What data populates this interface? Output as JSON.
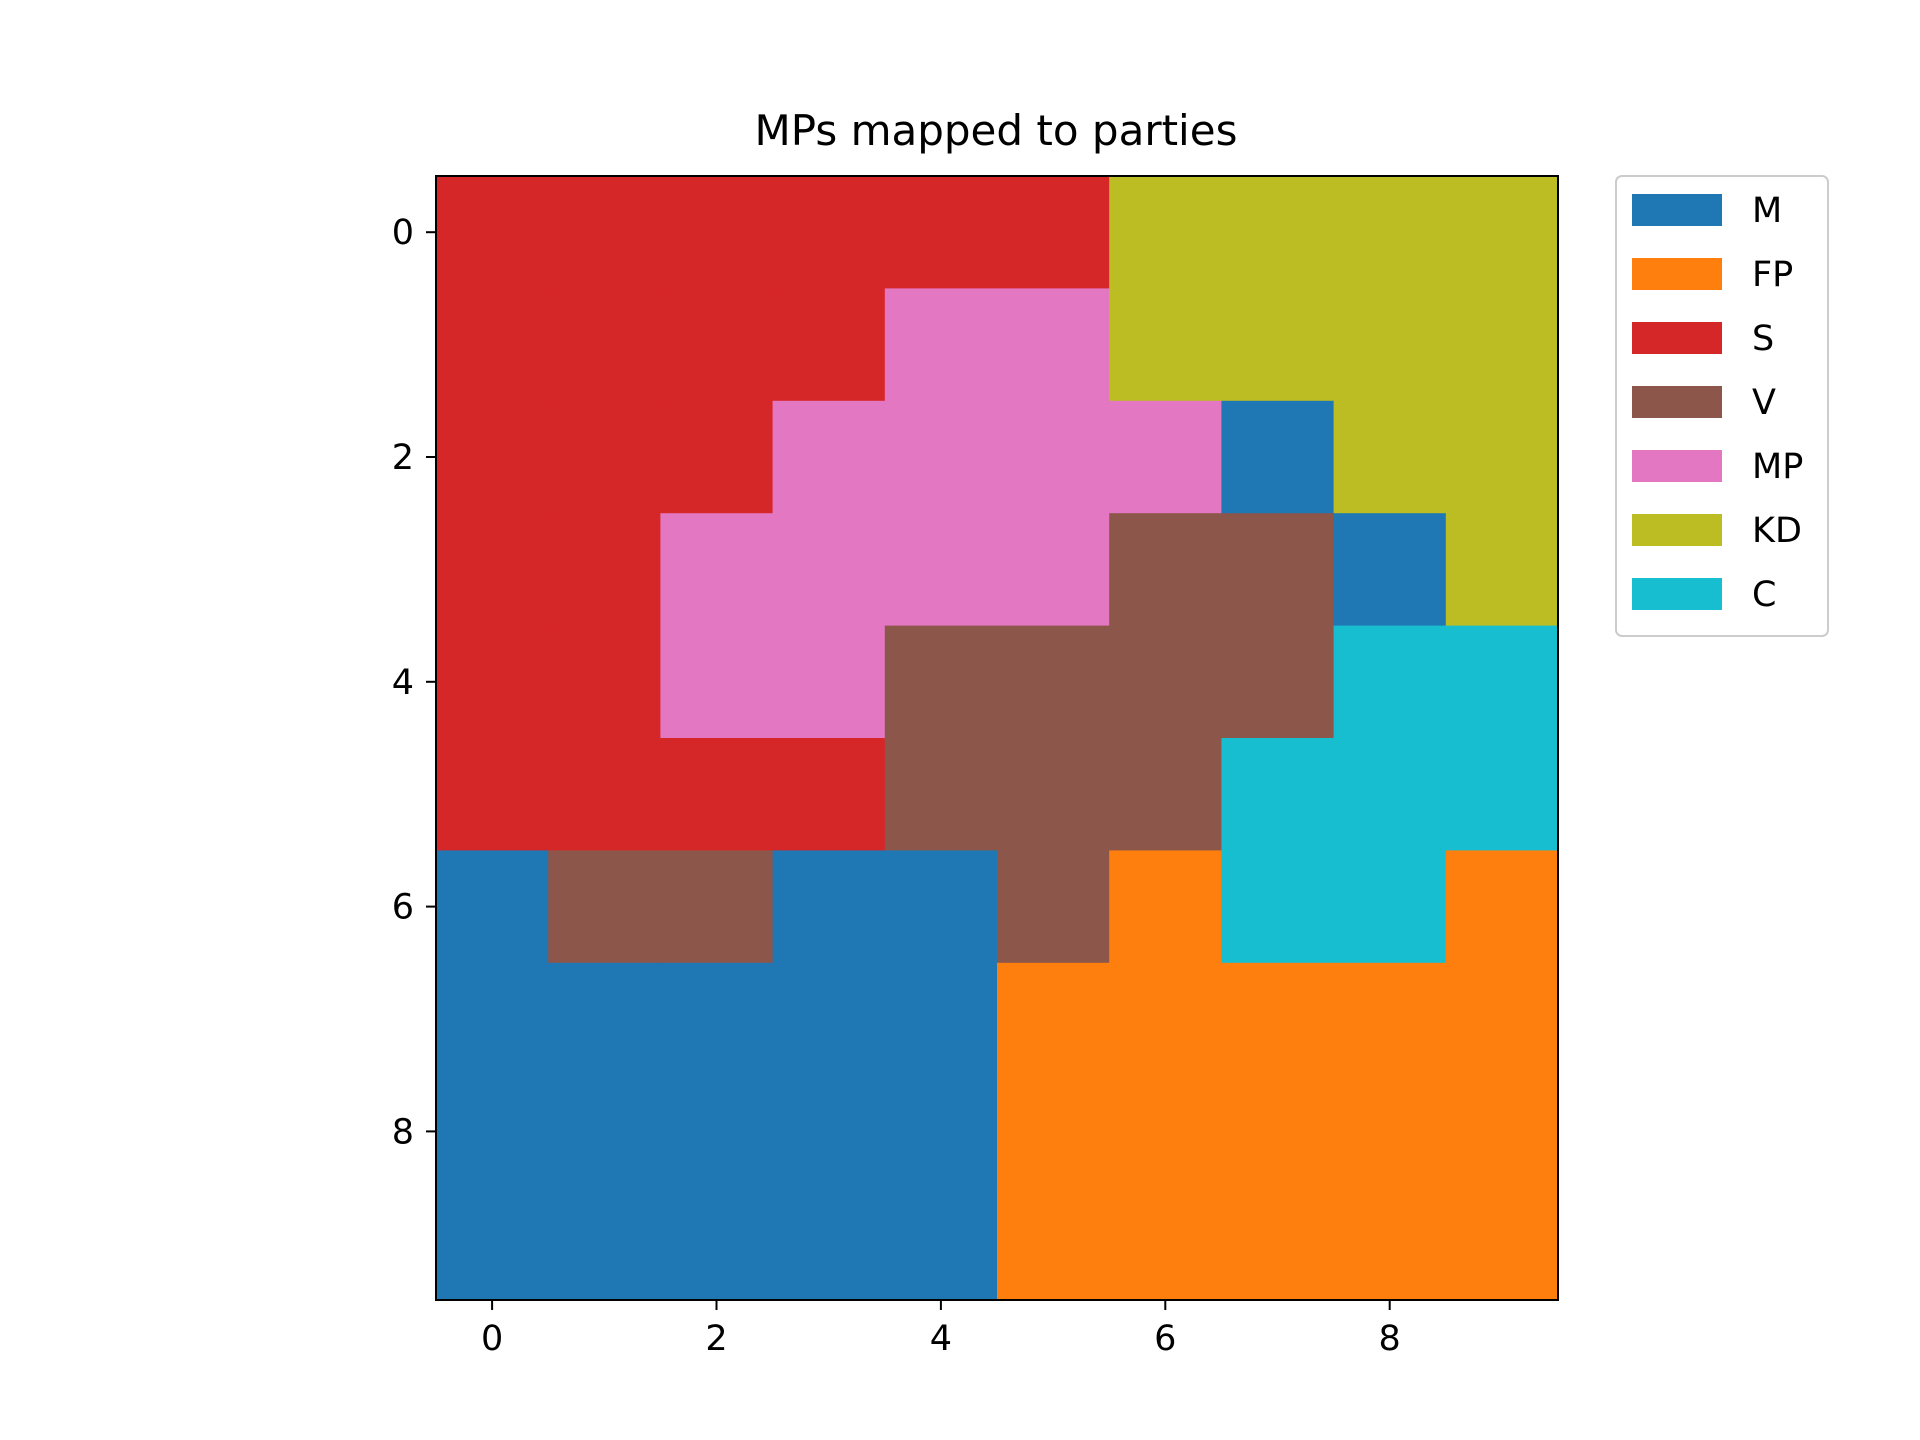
{
  "chart_data": {
    "type": "heatmap",
    "title": "MPs mapped to parties",
    "xlabel": "",
    "ylabel": "",
    "x_ticks": [
      0,
      2,
      4,
      6,
      8
    ],
    "y_ticks": [
      0,
      2,
      4,
      6,
      8
    ],
    "xlim": [
      -0.5,
      9.5
    ],
    "ylim": [
      9.5,
      -0.5
    ],
    "grid": false,
    "legend_position": "outside-top-right",
    "parties": [
      {
        "name": "M",
        "color": "#1f77b4"
      },
      {
        "name": "FP",
        "color": "#ff7f0e"
      },
      {
        "name": "S",
        "color": "#d62728"
      },
      {
        "name": "V",
        "color": "#8c564b"
      },
      {
        "name": "MP",
        "color": "#e377c2"
      },
      {
        "name": "KD",
        "color": "#bcbd22"
      },
      {
        "name": "C",
        "color": "#17becf"
      }
    ],
    "grid_values": [
      [
        "S",
        "S",
        "S",
        "S",
        "S",
        "S",
        "KD",
        "KD",
        "KD",
        "KD"
      ],
      [
        "S",
        "S",
        "S",
        "S",
        "MP",
        "MP",
        "KD",
        "KD",
        "KD",
        "KD"
      ],
      [
        "S",
        "S",
        "S",
        "MP",
        "MP",
        "MP",
        "MP",
        "M",
        "KD",
        "KD"
      ],
      [
        "S",
        "S",
        "MP",
        "MP",
        "MP",
        "MP",
        "V",
        "V",
        "M",
        "KD"
      ],
      [
        "S",
        "S",
        "MP",
        "MP",
        "V",
        "V",
        "V",
        "V",
        "C",
        "C"
      ],
      [
        "S",
        "S",
        "S",
        "S",
        "V",
        "V",
        "V",
        "C",
        "C",
        "C"
      ],
      [
        "M",
        "V",
        "V",
        "M",
        "M",
        "V",
        "FP",
        "C",
        "C",
        "FP"
      ],
      [
        "M",
        "M",
        "M",
        "M",
        "M",
        "FP",
        "FP",
        "FP",
        "FP",
        "FP"
      ],
      [
        "M",
        "M",
        "M",
        "M",
        "M",
        "FP",
        "FP",
        "FP",
        "FP",
        "FP"
      ],
      [
        "M",
        "M",
        "M",
        "M",
        "M",
        "FP",
        "FP",
        "FP",
        "FP",
        "FP"
      ]
    ]
  }
}
